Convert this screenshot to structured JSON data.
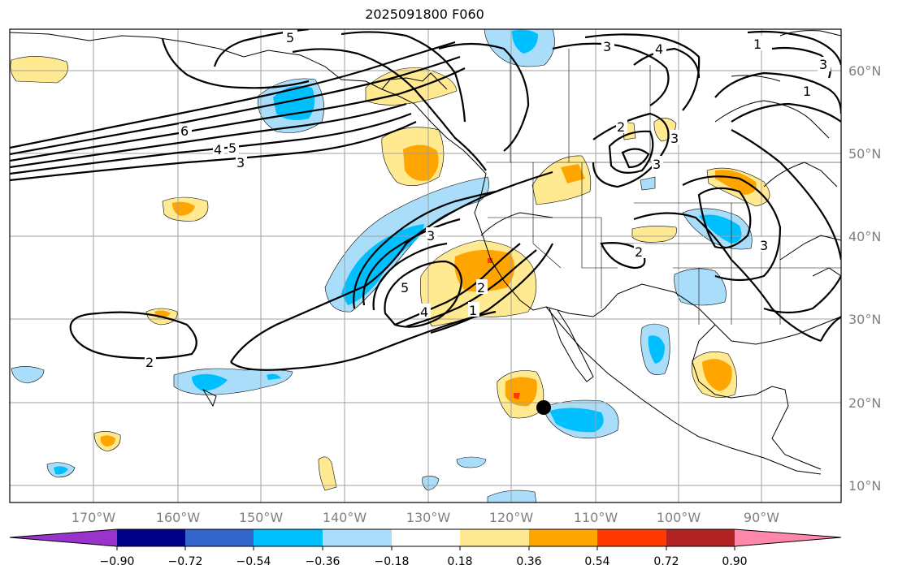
{
  "title": "2025091800 F060",
  "latitude_labels": [
    "60°N",
    "50°N",
    "40°N",
    "30°N",
    "20°N",
    "10°N"
  ],
  "longitude_labels": [
    "170°W",
    "160°W",
    "150°W",
    "140°W",
    "130°W",
    "120°W",
    "110°W",
    "100°W",
    "90°W"
  ],
  "colorbar": {
    "ticks": [
      "−0.90",
      "−0.72",
      "−0.54",
      "−0.36",
      "−0.18",
      "0.18",
      "0.36",
      "0.54",
      "0.72",
      "0.90"
    ],
    "colors": [
      "#9933cc",
      "#000088",
      "#3366cc",
      "#00bfff",
      "#a9ddf9",
      "#ffffff",
      "#ffe991",
      "#ffa500",
      "#ff3a00",
      "#b22222",
      "#ff88aa"
    ]
  },
  "contour_labels": [
    "5",
    "3",
    "4",
    "3",
    "1",
    "2",
    "6",
    "4",
    "5",
    "3",
    "3",
    "5",
    "4",
    "3",
    "2",
    "1",
    "2",
    "2",
    "3",
    "3",
    "1"
  ],
  "colors": {
    "contour": "#000000",
    "frame": "#000000",
    "grid": "#a0a0a0",
    "axis_label": "#808080"
  }
}
